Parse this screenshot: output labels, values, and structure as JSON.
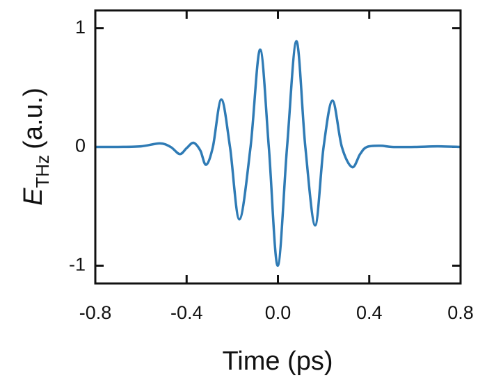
{
  "chart_data": {
    "type": "line",
    "xlabel": "Time (ps)",
    "ylabel": {
      "symbol": "E",
      "subscript": "THz",
      "unit": "(a.u.)"
    },
    "xlim": [
      -0.8,
      0.8
    ],
    "ylim": [
      -1.15,
      1.15
    ],
    "xticks": [
      -0.8,
      -0.4,
      {
        "value": 0,
        "label": "0.0"
      },
      0.4,
      0.8
    ],
    "yticks": [
      -1,
      0,
      1
    ],
    "grid": false,
    "series": [
      {
        "name": "E_THz",
        "color": "#2f7bb5",
        "x": [
          -0.8,
          -0.7,
          -0.6,
          -0.517,
          -0.47,
          -0.43,
          -0.4,
          -0.37,
          -0.34,
          -0.315,
          -0.285,
          -0.248,
          -0.21,
          -0.169,
          -0.12,
          -0.078,
          -0.04,
          -0.001,
          0.04,
          0.081,
          0.12,
          0.163,
          0.2,
          0.239,
          0.28,
          0.325,
          0.36,
          0.39,
          0.45,
          0.5,
          0.6,
          0.7,
          0.8
        ],
        "values": [
          0,
          0,
          0.005,
          0.03,
          0,
          -0.06,
          -0.01,
          0.035,
          -0.03,
          -0.15,
          0,
          0.4,
          0,
          -0.61,
          0,
          0.82,
          0,
          -1.0,
          0,
          0.89,
          0,
          -0.66,
          0,
          0.39,
          0,
          -0.17,
          -0.06,
          0,
          0.01,
          0,
          0,
          0.005,
          0
        ]
      }
    ]
  }
}
